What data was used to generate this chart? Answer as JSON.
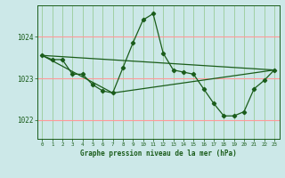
{
  "title": "Graphe pression niveau de la mer (hPa)",
  "bg_color": "#cce8e8",
  "grid_color_h": "#ff9999",
  "grid_color_v": "#99cc99",
  "line_color": "#1a5c1a",
  "xlim": [
    -0.5,
    23.5
  ],
  "ylim": [
    1021.55,
    1024.75
  ],
  "yticks": [
    1022,
    1023,
    1024
  ],
  "xticks": [
    0,
    1,
    2,
    3,
    4,
    5,
    6,
    7,
    8,
    9,
    10,
    11,
    12,
    13,
    14,
    15,
    16,
    17,
    18,
    19,
    20,
    21,
    22,
    23
  ],
  "series": [
    {
      "x": [
        0,
        1,
        2,
        3,
        4,
        5,
        6,
        7,
        8,
        9,
        10,
        11,
        12,
        13,
        14,
        15,
        16,
        17,
        18,
        19,
        20,
        21,
        22,
        23
      ],
      "y": [
        1023.55,
        1023.45,
        1023.45,
        1023.1,
        1023.1,
        1022.85,
        1022.7,
        1022.65,
        1023.25,
        1023.85,
        1024.4,
        1024.55,
        1023.6,
        1023.2,
        1023.15,
        1023.1,
        1022.75,
        1022.4,
        1022.1,
        1022.1,
        1022.2,
        1022.75,
        1022.95,
        1023.2
      ]
    },
    {
      "x": [
        0,
        23
      ],
      "y": [
        1023.55,
        1023.2
      ]
    },
    {
      "x": [
        0,
        7,
        23
      ],
      "y": [
        1023.55,
        1022.65,
        1023.2
      ]
    }
  ]
}
